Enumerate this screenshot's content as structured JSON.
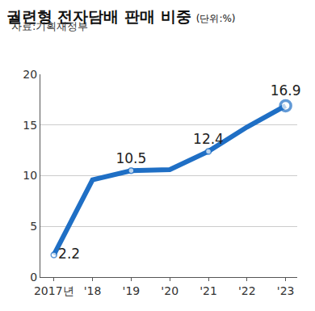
{
  "chart_data": {
    "type": "line",
    "title": "궐련형 전자담배 판매 비중",
    "subtitle": "(단위:%)",
    "source": "자료:기획재정부",
    "categories": [
      "2017년",
      "'18",
      "'19",
      "'20",
      "'21",
      "'22",
      "'23"
    ],
    "values": [
      2.2,
      9.6,
      10.5,
      10.6,
      12.4,
      14.8,
      16.9
    ],
    "value_labels": [
      "2.2",
      null,
      "10.5",
      null,
      "12.4",
      null,
      "16.9"
    ],
    "data_labels": true,
    "color": "#1f6fc5",
    "marker": "circle",
    "ylim": [
      0,
      20
    ],
    "yticks": [
      0,
      5,
      10,
      15,
      20
    ],
    "grid": true
  }
}
